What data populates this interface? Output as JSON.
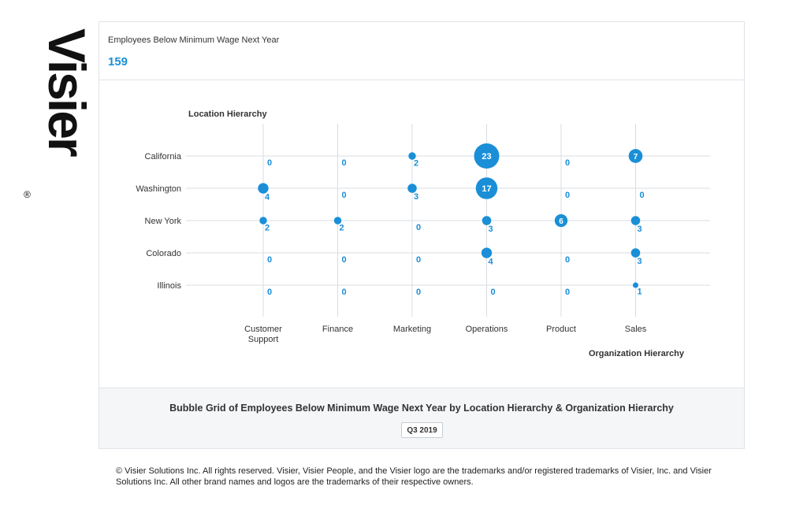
{
  "brand": {
    "name": "Visier",
    "reg_mark": "®",
    "text_color": "#111111"
  },
  "kpi": {
    "title": "Employees Below Minimum Wage Next Year",
    "value": "159",
    "value_color": "#1a8fd8"
  },
  "footer": {
    "title": "Bubble Grid of Employees Below Minimum Wage Next Year by Location Hierarchy & Organization Hierarchy",
    "period": "Q3 2019"
  },
  "copyright": "© Visier Solutions Inc. All rights reserved. Visier, Visier People, and the Visier logo are the trademarks and/or registered trademarks of Visier, Inc. and Visier Solutions Inc. All other brand names and logos are the trademarks of their respective owners.",
  "chart_data": {
    "type": "bubble-grid",
    "title": "Bubble Grid of Employees Below Minimum Wage Next Year by Location Hierarchy & Organization Hierarchy",
    "xlabel": "Organization Hierarchy",
    "ylabel": "Location Hierarchy",
    "x_categories": [
      [
        "Customer",
        "Support"
      ],
      [
        "Finance"
      ],
      [
        "Marketing"
      ],
      [
        "Operations"
      ],
      [
        "Product"
      ],
      [
        "Sales"
      ]
    ],
    "y_categories": [
      "California",
      "Washington",
      "New York",
      "Colorado",
      "Illinois"
    ],
    "values": [
      [
        0,
        0,
        2,
        23,
        0,
        7
      ],
      [
        4,
        0,
        3,
        17,
        0,
        0
      ],
      [
        2,
        2,
        0,
        3,
        6,
        3
      ],
      [
        0,
        0,
        0,
        4,
        0,
        3
      ],
      [
        0,
        0,
        0,
        0,
        0,
        1
      ]
    ],
    "bubble_color": "#1a8fd8",
    "grid": true
  }
}
